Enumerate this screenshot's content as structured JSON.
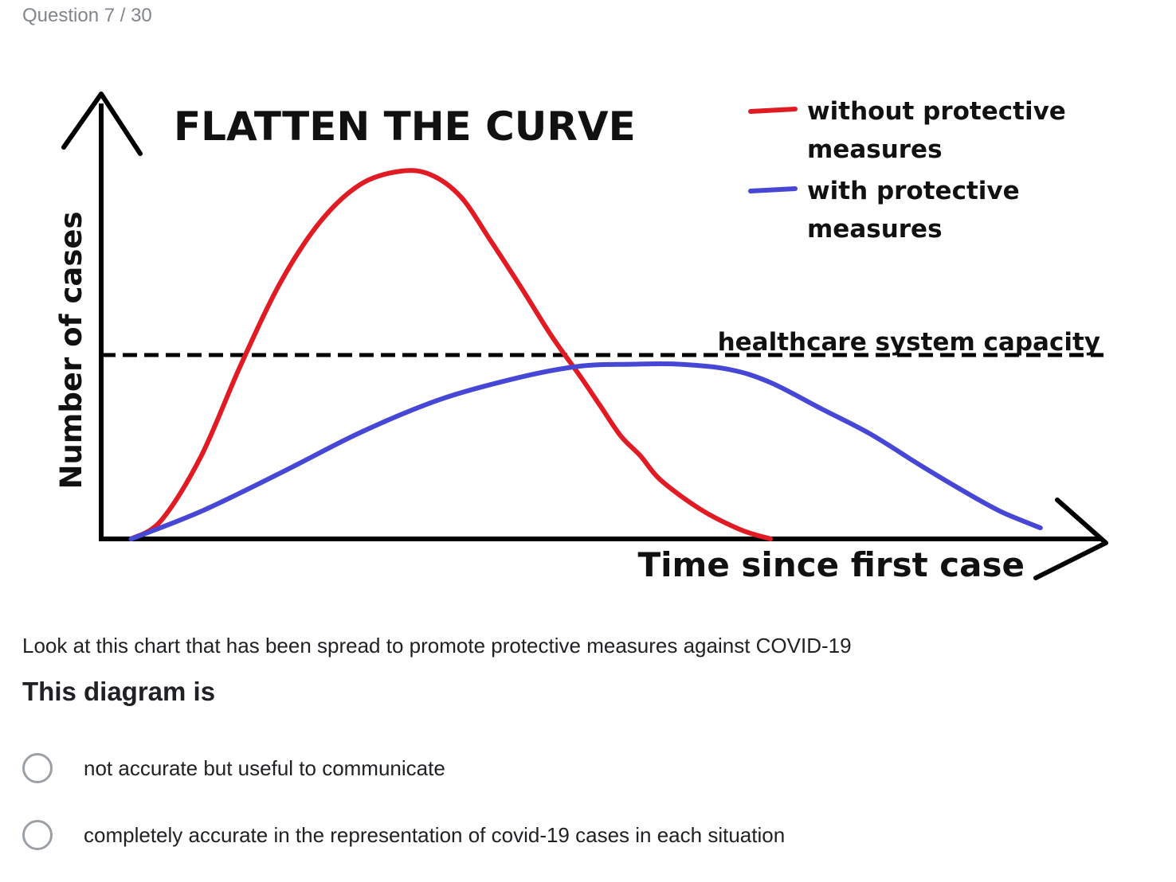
{
  "header": {
    "question_counter": "Question 7 / 30"
  },
  "colors": {
    "without_measures": "#e01b24",
    "with_measures": "#4747d6",
    "axis": "#000000",
    "radio_border": "#9aa0a6",
    "counter_text": "#80868b"
  },
  "chart_data": {
    "type": "line",
    "title": "FLATTEN THE CURVE",
    "xlabel": "Time since first case",
    "ylabel": "Number of cases",
    "x_ticks": [],
    "y_ticks": [],
    "grid": false,
    "legend_placement": "top-right",
    "legend": [
      "without protective measures",
      "with protective measures"
    ],
    "reference_line": {
      "label": "healthcare system capacity",
      "y": 1.0
    },
    "xlim": [
      0,
      1
    ],
    "ylim": [
      0,
      2.0
    ],
    "series": [
      {
        "name": "without protective measures",
        "color": "#e01b24",
        "x": [
          0.03,
          0.06,
          0.1,
          0.14,
          0.18,
          0.22,
          0.26,
          0.3,
          0.33,
          0.36,
          0.39,
          0.42,
          0.45,
          0.48,
          0.5,
          0.52,
          0.54,
          0.56,
          0.6,
          0.64,
          0.67
        ],
        "y": [
          0.0,
          0.1,
          0.45,
          0.95,
          1.4,
          1.73,
          1.93,
          2.0,
          1.98,
          1.86,
          1.62,
          1.37,
          1.11,
          0.88,
          0.72,
          0.56,
          0.45,
          0.32,
          0.16,
          0.05,
          0.0
        ]
      },
      {
        "name": "with protective measures",
        "color": "#4747d6",
        "x": [
          0.03,
          0.1,
          0.18,
          0.26,
          0.34,
          0.42,
          0.48,
          0.53,
          0.58,
          0.63,
          0.67,
          0.72,
          0.77,
          0.82,
          0.86,
          0.9,
          0.94
        ],
        "y": [
          0.0,
          0.15,
          0.36,
          0.58,
          0.76,
          0.88,
          0.94,
          0.95,
          0.95,
          0.92,
          0.85,
          0.71,
          0.57,
          0.4,
          0.27,
          0.15,
          0.06
        ]
      }
    ]
  },
  "question": {
    "prompt": "Look at this chart that has been spread to promote protective measures against COVID-19",
    "title": "This diagram is",
    "options": [
      {
        "label": "not accurate but useful to communicate"
      },
      {
        "label": "completely accurate in the representation of covid-19 cases in each situation"
      }
    ]
  }
}
